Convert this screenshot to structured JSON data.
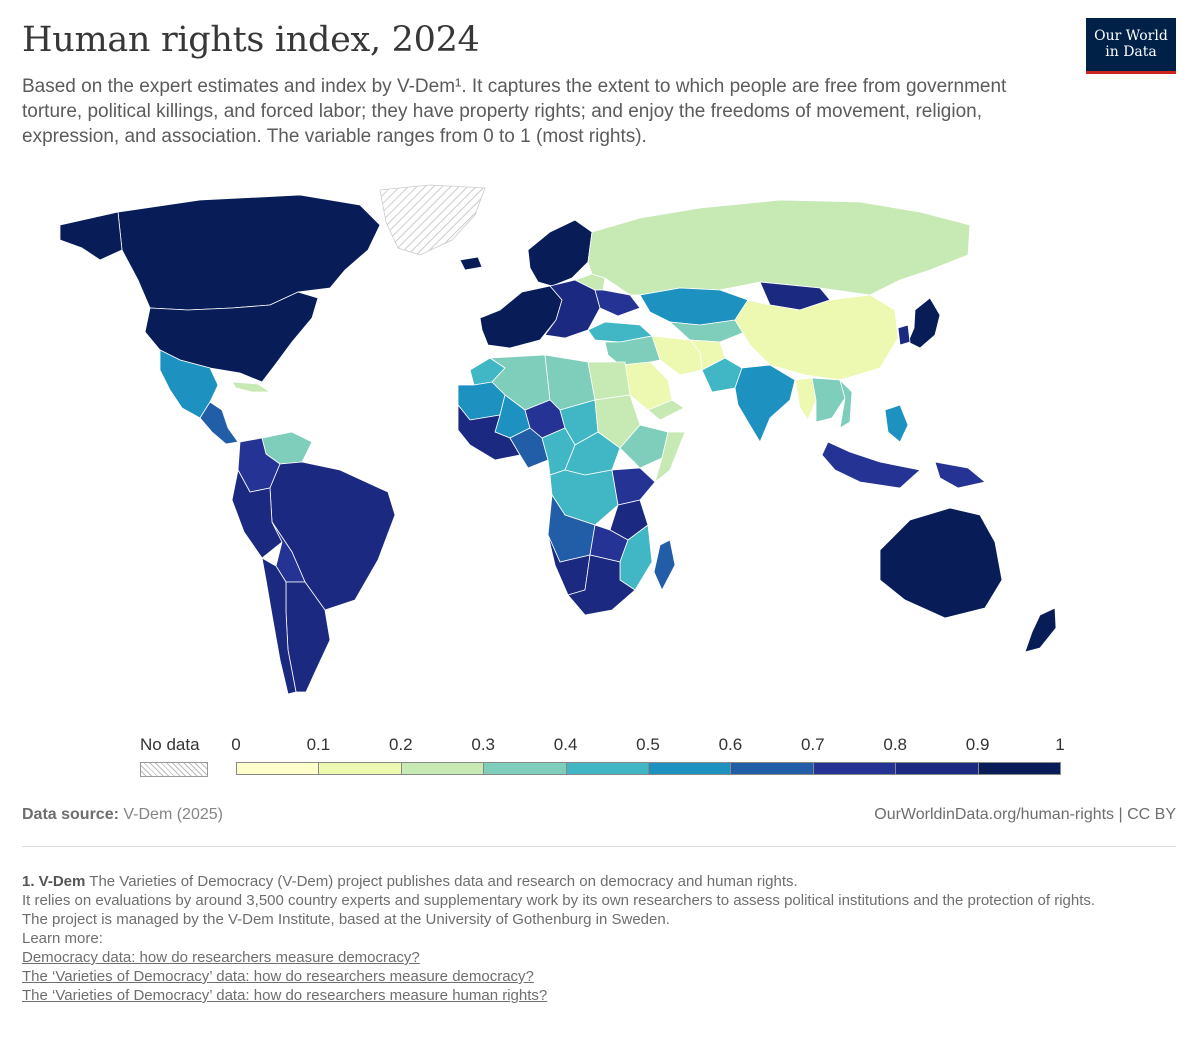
{
  "header": {
    "title": "Human rights index, 2024",
    "subtitle": "Based on the expert estimates and index by V-Dem¹. It captures the extent to which people are free from government torture, political killings, and forced labor; they have property rights; and enjoy the freedoms of movement, religion, expression, and association. The variable ranges from 0 to 1 (most rights).",
    "logo_line1": "Our World",
    "logo_line2": "in Data"
  },
  "legend": {
    "no_data_label": "No data",
    "ticks": [
      "0",
      "0.1",
      "0.2",
      "0.3",
      "0.4",
      "0.5",
      "0.6",
      "0.7",
      "0.8",
      "0.9",
      "1"
    ],
    "colors": [
      "#ffffcc",
      "#edf8b1",
      "#c7e9b4",
      "#7fcdbb",
      "#41b6c4",
      "#1d91c0",
      "#225ea8",
      "#253494",
      "#1b2a80",
      "#081d58"
    ]
  },
  "map": {
    "colors": {
      "no_data": "#eeeeee",
      "border": "#ffffff",
      "ocean": "#ffffff"
    },
    "regions": [
      {
        "name": "Canada",
        "value": 0.93
      },
      {
        "name": "United States",
        "value": 0.91
      },
      {
        "name": "Mexico",
        "value": 0.55
      },
      {
        "name": "Central America",
        "value": 0.62
      },
      {
        "name": "Cuba",
        "value": 0.2
      },
      {
        "name": "Venezuela",
        "value": 0.33
      },
      {
        "name": "Colombia",
        "value": 0.74
      },
      {
        "name": "Brazil",
        "value": 0.82
      },
      {
        "name": "Peru",
        "value": 0.8
      },
      {
        "name": "Bolivia",
        "value": 0.76
      },
      {
        "name": "Argentina",
        "value": 0.85
      },
      {
        "name": "Chile",
        "value": 0.86
      },
      {
        "name": "Greenland",
        "value": null
      },
      {
        "name": "Alaska",
        "value": 0.91
      },
      {
        "name": "Iceland",
        "value": 0.95
      },
      {
        "name": "Western Europe",
        "value": 0.94
      },
      {
        "name": "Scandinavia",
        "value": 0.95
      },
      {
        "name": "Eastern Europe",
        "value": 0.83
      },
      {
        "name": "Belarus",
        "value": 0.22
      },
      {
        "name": "Ukraine",
        "value": 0.7
      },
      {
        "name": "Turkey",
        "value": 0.44
      },
      {
        "name": "Russia",
        "value": 0.25
      },
      {
        "name": "Kazakhstan",
        "value": 0.5
      },
      {
        "name": "Central Asia",
        "value": 0.35
      },
      {
        "name": "Mongolia",
        "value": 0.8
      },
      {
        "name": "China",
        "value": 0.12
      },
      {
        "name": "Iran",
        "value": 0.18
      },
      {
        "name": "Afghanistan",
        "value": 0.1
      },
      {
        "name": "Pakistan",
        "value": 0.45
      },
      {
        "name": "India",
        "value": 0.58
      },
      {
        "name": "Saudi Arabia",
        "value": 0.12
      },
      {
        "name": "Middle East",
        "value": 0.3
      },
      {
        "name": "Yemen",
        "value": 0.2
      },
      {
        "name": "Myanmar",
        "value": 0.15
      },
      {
        "name": "Mainland Southeast Asia",
        "value": 0.35
      },
      {
        "name": "Vietnam",
        "value": 0.3
      },
      {
        "name": "Japan",
        "value": 0.93
      },
      {
        "name": "South Korea",
        "value": 0.88
      },
      {
        "name": "Philippines",
        "value": 0.55
      },
      {
        "name": "Indonesia",
        "value": 0.78
      },
      {
        "name": "Papua New Guinea",
        "value": 0.75
      },
      {
        "name": "Australia",
        "value": 0.95
      },
      {
        "name": "New Zealand",
        "value": 0.95
      },
      {
        "name": "Morocco",
        "value": 0.45
      },
      {
        "name": "Algeria",
        "value": 0.38
      },
      {
        "name": "Libya",
        "value": 0.3
      },
      {
        "name": "Egypt",
        "value": 0.2
      },
      {
        "name": "Mauritania",
        "value": 0.5
      },
      {
        "name": "Mali",
        "value": 0.55
      },
      {
        "name": "Niger",
        "value": 0.75
      },
      {
        "name": "Chad",
        "value": 0.4
      },
      {
        "name": "Sudan",
        "value": 0.25
      },
      {
        "name": "Ethiopia",
        "value": 0.3
      },
      {
        "name": "Somalia",
        "value": 0.25
      },
      {
        "name": "West Africa",
        "value": 0.8
      },
      {
        "name": "Nigeria",
        "value": 0.65
      },
      {
        "name": "Cameroon",
        "value": 0.45
      },
      {
        "name": "Central Africa",
        "value": 0.45
      },
      {
        "name": "DR Congo",
        "value": 0.48
      },
      {
        "name": "Kenya",
        "value": 0.75
      },
      {
        "name": "Tanzania",
        "value": 0.82
      },
      {
        "name": "Angola",
        "value": 0.62
      },
      {
        "name": "Zambia",
        "value": 0.78
      },
      {
        "name": "Mozambique",
        "value": 0.45
      },
      {
        "name": "Namibia",
        "value": 0.88
      },
      {
        "name": "South Africa",
        "value": 0.82
      },
      {
        "name": "Madagascar",
        "value": 0.68
      }
    ]
  },
  "footer": {
    "source_label": "Data source:",
    "source_value": "V-Dem (2025)",
    "source_right": "OurWorldinData.org/human-rights | CC BY",
    "note_number": "1. V-Dem",
    "note_line1": "The Varieties of Democracy (V-Dem) project publishes data and research on democracy and human rights.",
    "note_line2": "It relies on evaluations by around 3,500 country experts and supplementary work by its own researchers to assess political institutions and the protection of rights.",
    "note_line3": "The project is managed by the V-Dem Institute, based at the University of Gothenburg in Sweden.",
    "note_line4": "Learn more:",
    "links": [
      "Democracy data: how do researchers measure democracy?",
      "The ‘Varieties of Democracy’ data: how do researchers measure democracy?",
      "The ‘Varieties of Democracy’ data: how do researchers measure human rights?"
    ]
  }
}
